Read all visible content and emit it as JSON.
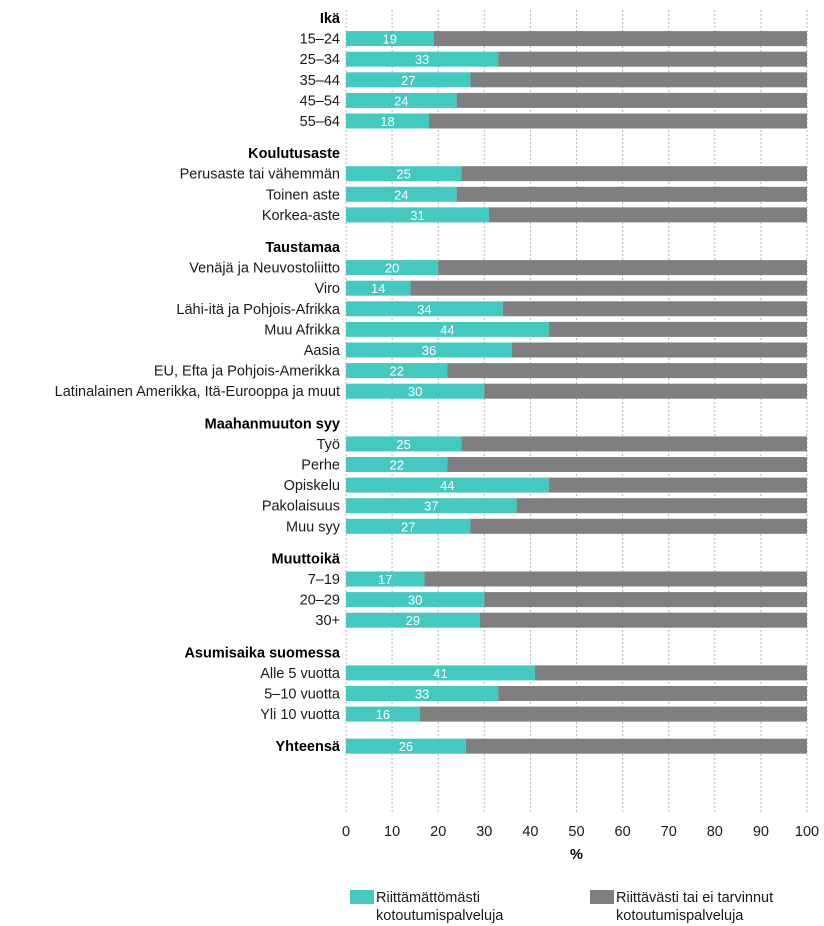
{
  "chart_data": {
    "type": "bar",
    "orientation": "horizontal",
    "stacked": true,
    "xlabel": "%",
    "xlim": [
      0,
      100
    ],
    "xticks": [
      0,
      10,
      20,
      30,
      40,
      50,
      60,
      70,
      80,
      90,
      100
    ],
    "grid": "vertical dashed",
    "legend_position": "bottom",
    "series": [
      {
        "name": "Riittämättömästi kotoutumispalveluja",
        "color": "#45c8c0"
      },
      {
        "name": "Riittävästi tai ei tarvinnut kotoutumispalveluja",
        "color": "#7f7f7f"
      }
    ],
    "groups": [
      {
        "label": "Ikä",
        "items": [
          {
            "label": "15–24",
            "value": 19
          },
          {
            "label": "25–34",
            "value": 33
          },
          {
            "label": "35–44",
            "value": 27
          },
          {
            "label": "45–54",
            "value": 24
          },
          {
            "label": "55–64",
            "value": 18
          }
        ]
      },
      {
        "label": "Koulutusaste",
        "items": [
          {
            "label": "Perusaste tai vähemmän",
            "value": 25
          },
          {
            "label": "Toinen aste",
            "value": 24
          },
          {
            "label": "Korkea-aste",
            "value": 31
          }
        ]
      },
      {
        "label": "Taustamaa",
        "items": [
          {
            "label": "Venäjä ja Neuvostoliitto",
            "value": 20
          },
          {
            "label": "Viro",
            "value": 14
          },
          {
            "label": "Lähi-itä ja Pohjois-Afrikka",
            "value": 34
          },
          {
            "label": "Muu Afrikka",
            "value": 44
          },
          {
            "label": "Aasia",
            "value": 36
          },
          {
            "label": "EU, Efta ja Pohjois-Amerikka",
            "value": 22
          },
          {
            "label": "Latinalainen Amerikka, Itä-Eurooppa ja muut",
            "value": 30
          }
        ]
      },
      {
        "label": "Maahanmuuton syy",
        "items": [
          {
            "label": "Työ",
            "value": 25
          },
          {
            "label": "Perhe",
            "value": 22
          },
          {
            "label": "Opiskelu",
            "value": 44
          },
          {
            "label": "Pakolaisuus",
            "value": 37
          },
          {
            "label": "Muu syy",
            "value": 27
          }
        ]
      },
      {
        "label": "Muuttoikä",
        "items": [
          {
            "label": "7–19",
            "value": 17
          },
          {
            "label": "20–29",
            "value": 30
          },
          {
            "label": "30+",
            "value": 29
          }
        ]
      },
      {
        "label": "Asumisaika suomessa",
        "items": [
          {
            "label": "Alle 5 vuotta",
            "value": 41
          },
          {
            "label": "5–10 vuotta",
            "value": 33
          },
          {
            "label": "Yli 10 vuotta",
            "value": 16
          }
        ]
      },
      {
        "label": "Yhteensä",
        "total": true,
        "value": 26
      }
    ]
  }
}
